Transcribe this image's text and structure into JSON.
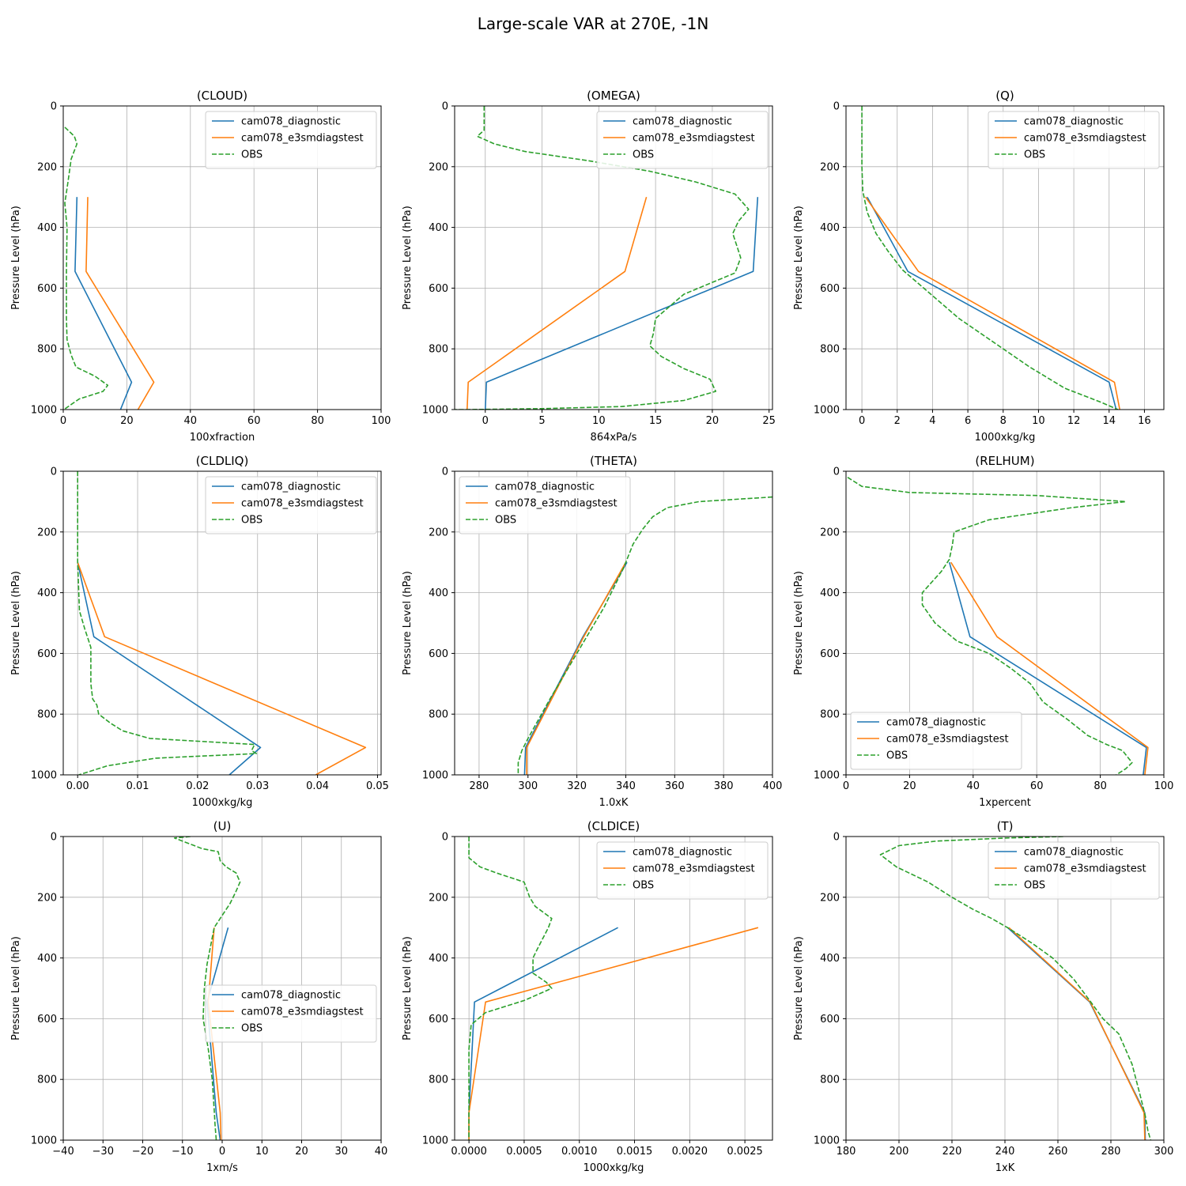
{
  "figure": {
    "title": "Large-scale VAR at 270E, -1N"
  },
  "colors": {
    "cam078_diagnostic": "#1f77b4",
    "cam078_e3smdiagstest": "#ff7f0e",
    "OBS": "#2ca02c",
    "grid": "#b0b0b0"
  },
  "chart_data": [
    {
      "type": "line",
      "title": "(CLOUD)",
      "xlabel": "100xfraction",
      "ylabel": "Pressure Level (hPa)",
      "xlim": [
        0,
        100
      ],
      "ylim": [
        1000,
        0
      ],
      "xticks": [
        0,
        20,
        40,
        60,
        80,
        100
      ],
      "yticks": [
        0,
        200,
        400,
        600,
        800,
        1000
      ],
      "legend": "upper right",
      "grid": true,
      "series": [
        {
          "name": "cam078_diagnostic",
          "style": "solid",
          "x": [
            4.3,
            3.7,
            21.5,
            18.0
          ],
          "p": [
            300,
            545,
            910,
            1000
          ]
        },
        {
          "name": "cam078_e3smdiagstest",
          "style": "solid",
          "x": [
            7.7,
            7.2,
            28.5,
            23.5
          ],
          "p": [
            300,
            545,
            910,
            1000
          ]
        },
        {
          "name": "OBS",
          "style": "dashed",
          "x": [
            0.5,
            3.5,
            4.3,
            2.5,
            1.5,
            0.5,
            1.2,
            1.0,
            1.0,
            1.2,
            2.5,
            4.0,
            10,
            14.0,
            12.5,
            5.0,
            0.2
          ],
          "p": [
            70,
            100,
            125,
            175,
            250,
            320,
            400,
            550,
            700,
            770,
            820,
            860,
            890,
            920,
            940,
            965,
            1000
          ]
        }
      ]
    },
    {
      "type": "line",
      "title": "(OMEGA)",
      "xlabel": "864xPa/s",
      "ylabel": "Pressure Level (hPa)",
      "xlim": [
        -2.7,
        25.3
      ],
      "ylim": [
        1000,
        0
      ],
      "xticks": [
        0,
        5,
        10,
        15,
        20,
        25
      ],
      "yticks": [
        0,
        200,
        400,
        600,
        800,
        1000
      ],
      "legend": "upper right",
      "grid": true,
      "series": [
        {
          "name": "cam078_diagnostic",
          "style": "solid",
          "x": [
            24.0,
            23.6,
            0.1,
            0.0
          ],
          "p": [
            300,
            545,
            910,
            1000
          ]
        },
        {
          "name": "cam078_e3smdiagstest",
          "style": "solid",
          "x": [
            14.2,
            12.3,
            -1.5,
            -1.6
          ],
          "p": [
            300,
            545,
            910,
            1000
          ]
        },
        {
          "name": "OBS",
          "style": "dashed",
          "x": [
            -0.1,
            -0.1,
            -0.1,
            -0.7,
            0.8,
            3.5,
            9.0,
            14.5,
            18.5,
            22.0,
            23.2,
            22.3,
            21.8,
            22.5,
            22.0,
            17.5,
            15.0,
            14.8,
            14.5,
            15.5,
            17.5,
            19.8,
            20.3,
            17.5,
            12.0,
            5.0,
            -1.5,
            -2.7
          ],
          "p": [
            0,
            50,
            80,
            100,
            125,
            150,
            180,
            215,
            250,
            290,
            340,
            380,
            420,
            500,
            550,
            620,
            700,
            750,
            790,
            825,
            865,
            900,
            940,
            970,
            990,
            997,
            1000,
            1000
          ]
        }
      ]
    },
    {
      "type": "line",
      "title": "(Q)",
      "xlabel": "1000xkg/kg",
      "ylabel": "Pressure Level (hPa)",
      "xlim": [
        -0.9,
        17.1
      ],
      "ylim": [
        1000,
        0
      ],
      "xticks": [
        0,
        2,
        4,
        6,
        8,
        10,
        12,
        14,
        16
      ],
      "yticks": [
        0,
        200,
        400,
        600,
        800,
        1000
      ],
      "legend": "upper right",
      "grid": true,
      "series": [
        {
          "name": "cam078_diagnostic",
          "style": "solid",
          "x": [
            0.3,
            2.6,
            14.0,
            14.4
          ],
          "p": [
            300,
            545,
            910,
            1000
          ]
        },
        {
          "name": "cam078_e3smdiagstest",
          "style": "solid",
          "x": [
            0.2,
            3.2,
            14.3,
            14.6
          ],
          "p": [
            300,
            545,
            910,
            1000
          ]
        },
        {
          "name": "OBS",
          "style": "dashed",
          "x": [
            0.0,
            0.0,
            0.05,
            0.3,
            0.8,
            1.5,
            2.3,
            3.5,
            5.5,
            7.5,
            9.5,
            11.5,
            13.5,
            14.5
          ],
          "p": [
            0,
            200,
            280,
            350,
            420,
            480,
            540,
            600,
            700,
            780,
            860,
            930,
            975,
            1000
          ]
        }
      ]
    },
    {
      "type": "line",
      "title": "(CLDLIQ)",
      "xlabel": "1000xkg/kg",
      "ylabel": "Pressure Level (hPa)",
      "xlim": [
        -0.0024,
        0.0506
      ],
      "ylim": [
        1000,
        0
      ],
      "xticks": [
        0.0,
        0.01,
        0.02,
        0.03,
        0.04,
        0.05
      ],
      "xdec": 2,
      "yticks": [
        0,
        200,
        400,
        600,
        800,
        1000
      ],
      "legend": "upper right",
      "grid": true,
      "series": [
        {
          "name": "cam078_diagnostic",
          "style": "solid",
          "x": [
            0.0,
            0.0027,
            0.0305,
            0.0253
          ],
          "p": [
            300,
            545,
            910,
            1000
          ]
        },
        {
          "name": "cam078_e3smdiagstest",
          "style": "solid",
          "x": [
            0.0,
            0.0045,
            0.048,
            0.0397
          ],
          "p": [
            300,
            545,
            910,
            1000
          ]
        },
        {
          "name": "OBS",
          "style": "dashed",
          "x": [
            0.0,
            0.0,
            0.0003,
            0.0012,
            0.0022,
            0.0022,
            0.0025,
            0.0032,
            0.0035,
            0.0055,
            0.0075,
            0.012,
            0.0295,
            0.029,
            0.0298,
            0.013,
            0.005,
            0.0002
          ],
          "p": [
            0,
            300,
            460,
            520,
            580,
            700,
            750,
            770,
            800,
            830,
            855,
            880,
            900,
            920,
            930,
            945,
            970,
            1000
          ]
        }
      ]
    },
    {
      "type": "line",
      "title": "(THETA)",
      "xlabel": "1.0xK",
      "ylabel": "Pressure Level (hPa)",
      "xlim": [
        270,
        400
      ],
      "ylim": [
        1000,
        0
      ],
      "xticks": [
        280,
        300,
        320,
        340,
        360,
        380,
        400
      ],
      "yticks": [
        0,
        200,
        400,
        600,
        800,
        1000
      ],
      "legend": "upper left",
      "grid": true,
      "series": [
        {
          "name": "cam078_diagnostic",
          "style": "solid",
          "x": [
            340.5,
            322.5,
            299.0,
            298.6
          ],
          "p": [
            300,
            545,
            910,
            1000
          ]
        },
        {
          "name": "cam078_e3smdiagstest",
          "style": "solid",
          "x": [
            340.0,
            322.8,
            299.5,
            299.5
          ],
          "p": [
            300,
            545,
            910,
            1000
          ]
        },
        {
          "name": "OBS",
          "style": "dashed",
          "x": [
            400,
            370,
            357,
            351,
            347,
            343,
            339,
            331,
            320,
            309,
            300,
            297.5,
            296,
            296
          ],
          "p": [
            85,
            100,
            120,
            150,
            190,
            240,
            320,
            450,
            600,
            750,
            880,
            920,
            960,
            1000
          ]
        }
      ]
    },
    {
      "type": "line",
      "title": "(RELHUM)",
      "xlabel": "1xpercent",
      "ylabel": "Pressure Level (hPa)",
      "xlim": [
        0,
        100
      ],
      "ylim": [
        1000,
        0
      ],
      "xticks": [
        0,
        20,
        40,
        60,
        80,
        100
      ],
      "yticks": [
        0,
        200,
        400,
        600,
        800,
        1000
      ],
      "legend": "lower left",
      "grid": true,
      "series": [
        {
          "name": "cam078_diagnostic",
          "style": "solid",
          "x": [
            32.5,
            39.0,
            94.5,
            93.5
          ],
          "p": [
            300,
            545,
            910,
            1000
          ]
        },
        {
          "name": "cam078_e3smdiagstest",
          "style": "solid",
          "x": [
            33.0,
            47.5,
            95.0,
            94.0
          ],
          "p": [
            300,
            545,
            910,
            1000
          ]
        },
        {
          "name": "OBS",
          "style": "dashed",
          "x": [
            0.5,
            5,
            20,
            60,
            88,
            71,
            45,
            34,
            33.5,
            32.5,
            30,
            24,
            24,
            28,
            35,
            45,
            52,
            58,
            62,
            70,
            76,
            82,
            87,
            90,
            88,
            85
          ],
          "p": [
            20,
            50,
            70,
            80,
            100,
            120,
            160,
            200,
            240,
            290,
            330,
            400,
            440,
            500,
            560,
            600,
            650,
            700,
            760,
            820,
            870,
            900,
            920,
            960,
            980,
            1000
          ]
        }
      ]
    },
    {
      "type": "line",
      "title": "(U)",
      "xlabel": "1xm/s",
      "ylabel": "Pressure Level (hPa)",
      "xlim": [
        -40,
        40
      ],
      "ylim": [
        1000,
        0
      ],
      "xticks": [
        -40,
        -30,
        -20,
        -10,
        0,
        10,
        20,
        30,
        40
      ],
      "yticks": [
        0,
        200,
        400,
        600,
        800,
        1000
      ],
      "legend": "center right",
      "grid": true,
      "series": [
        {
          "name": "cam078_diagnostic",
          "style": "solid",
          "x": [
            1.5,
            -3.8,
            -1.5,
            -0.5
          ],
          "p": [
            300,
            545,
            910,
            1000
          ]
        },
        {
          "name": "cam078_e3smdiagstest",
          "style": "solid",
          "x": [
            -2.0,
            -3.5,
            -0.5,
            -0.3
          ],
          "p": [
            300,
            545,
            910,
            1000
          ]
        },
        {
          "name": "OBS",
          "style": "dashed",
          "x": [
            -8,
            -12,
            -9,
            -5,
            -1,
            -0.5,
            1,
            3.5,
            4.5,
            3.5,
            2,
            0,
            -2,
            -3.8,
            -4.5,
            -4.8,
            -3.5,
            -2.5,
            -2.0,
            -1.8,
            -1.5
          ],
          "p": [
            0,
            5,
            20,
            40,
            50,
            80,
            100,
            120,
            150,
            180,
            220,
            260,
            300,
            420,
            500,
            600,
            700,
            800,
            900,
            950,
            1000
          ]
        }
      ]
    },
    {
      "type": "line",
      "title": "(CLDICE)",
      "xlabel": "1000xkg/kg",
      "ylabel": "Pressure Level (hPa)",
      "xlim": [
        -0.00013,
        0.00275
      ],
      "ylim": [
        1000,
        0
      ],
      "xticks": [
        0.0,
        0.0005,
        0.001,
        0.0015,
        0.002,
        0.0025
      ],
      "xdec": 4,
      "yticks": [
        0,
        200,
        400,
        600,
        800,
        1000
      ],
      "legend": "upper right",
      "grid": true,
      "series": [
        {
          "name": "cam078_diagnostic",
          "style": "solid",
          "x": [
            0.00135,
            5e-05,
            0.0,
            0.0
          ],
          "p": [
            300,
            545,
            910,
            1000
          ]
        },
        {
          "name": "cam078_e3smdiagstest",
          "style": "solid",
          "x": [
            0.00262,
            0.00015,
            0.0,
            0.0
          ],
          "p": [
            300,
            545,
            910,
            1000
          ]
        },
        {
          "name": "OBS",
          "style": "dashed",
          "x": [
            0.0,
            0.0,
            0.0001,
            0.00025,
            0.0005,
            0.00055,
            0.0006,
            0.00075,
            0.00072,
            0.00062,
            0.00058,
            0.00058,
            0.0007,
            0.00075,
            0.0005,
            0.00015,
            2e-05,
            0.0,
            0.0,
            0.0
          ],
          "p": [
            0,
            70,
            100,
            120,
            150,
            200,
            230,
            270,
            300,
            370,
            400,
            450,
            480,
            500,
            540,
            580,
            620,
            700,
            900,
            1000
          ]
        }
      ]
    },
    {
      "type": "line",
      "title": "(T)",
      "xlabel": "1xK",
      "ylabel": "Pressure Level (hPa)",
      "xlim": [
        180,
        300
      ],
      "ylim": [
        1000,
        0
      ],
      "xticks": [
        180,
        200,
        220,
        240,
        260,
        280,
        300
      ],
      "yticks": [
        0,
        200,
        400,
        600,
        800,
        1000
      ],
      "legend": "upper right",
      "grid": true,
      "series": [
        {
          "name": "cam078_diagnostic",
          "style": "solid",
          "x": [
            241.0,
            272.0,
            292.8,
            293.0
          ],
          "p": [
            300,
            545,
            910,
            1000
          ]
        },
        {
          "name": "cam078_e3smdiagstest",
          "style": "solid",
          "x": [
            241.5,
            272.2,
            292.5,
            292.8
          ],
          "p": [
            300,
            545,
            910,
            1000
          ]
        },
        {
          "name": "OBS",
          "style": "dashed",
          "x": [
            262,
            240,
            214,
            200,
            193,
            199,
            211,
            220,
            228,
            235,
            241,
            250,
            258,
            266,
            272,
            277,
            283,
            288,
            291,
            293,
            294,
            295
          ],
          "p": [
            0,
            5,
            15,
            30,
            60,
            100,
            150,
            200,
            240,
            270,
            300,
            350,
            400,
            470,
            540,
            600,
            650,
            750,
            850,
            920,
            970,
            1000
          ]
        }
      ]
    }
  ]
}
